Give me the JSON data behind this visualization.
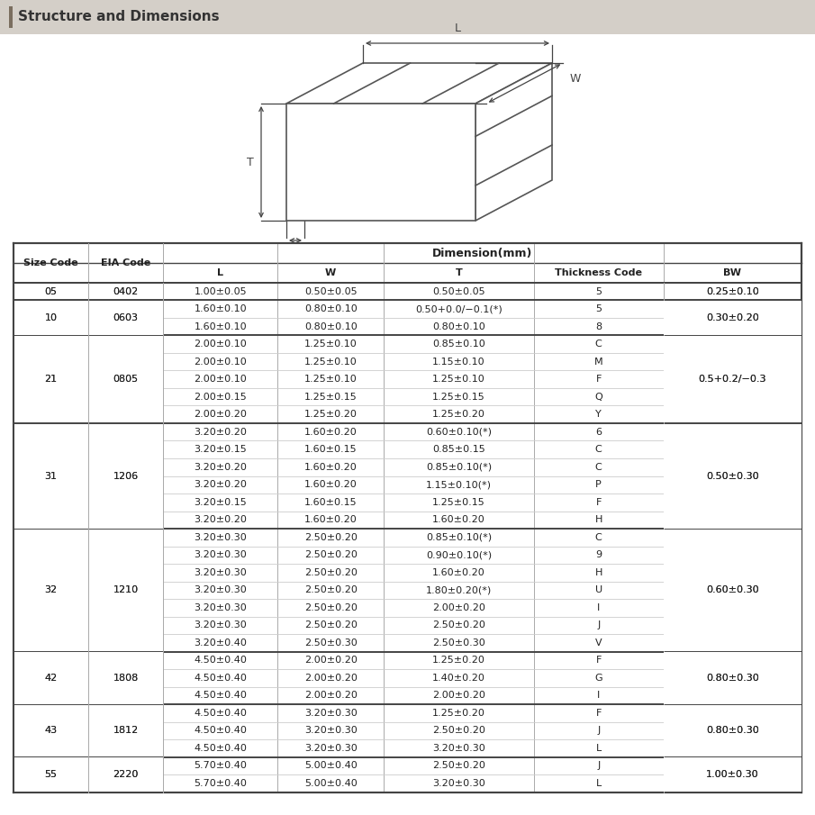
{
  "title": "Structure and Dimensions",
  "title_bar_color": "#d4cfc8",
  "title_accent_color": "#7a6e5f",
  "bg_color": "#ffffff",
  "dim_header": "Dimension(mm)",
  "col_headers_row1": [
    "Size Code",
    "EIA Code",
    "L",
    "W",
    "T",
    "Thickness Code",
    "BW"
  ],
  "rows": [
    [
      "05",
      "0402",
      "1.00±0.05",
      "0.50±0.05",
      "0.50±0.05",
      "5",
      "0.25±0.10"
    ],
    [
      "10",
      "0603",
      "1.60±0.10",
      "0.80±0.10",
      "0.50+0.0/−0.1(*)",
      "5",
      "0.30±0.20"
    ],
    [
      "",
      "",
      "1.60±0.10",
      "0.80±0.10",
      "0.80±0.10",
      "8",
      ""
    ],
    [
      "21",
      "0805",
      "2.00±0.10",
      "1.25±0.10",
      "0.85±0.10",
      "C",
      "0.5+0.2/−0.3"
    ],
    [
      "",
      "",
      "2.00±0.10",
      "1.25±0.10",
      "1.15±0.10",
      "M",
      ""
    ],
    [
      "",
      "",
      "2.00±0.10",
      "1.25±0.10",
      "1.25±0.10",
      "F",
      ""
    ],
    [
      "",
      "",
      "2.00±0.15",
      "1.25±0.15",
      "1.25±0.15",
      "Q",
      ""
    ],
    [
      "",
      "",
      "2.00±0.20",
      "1.25±0.20",
      "1.25±0.20",
      "Y",
      ""
    ],
    [
      "31",
      "1206",
      "3.20±0.20",
      "1.60±0.20",
      "0.60±0.10(*)",
      "6",
      "0.50±0.30"
    ],
    [
      "",
      "",
      "3.20±0.15",
      "1.60±0.15",
      "0.85±0.15",
      "C",
      ""
    ],
    [
      "",
      "",
      "3.20±0.20",
      "1.60±0.20",
      "0.85±0.10(*)",
      "C",
      ""
    ],
    [
      "",
      "",
      "3.20±0.20",
      "1.60±0.20",
      "1.15±0.10(*)",
      "P",
      ""
    ],
    [
      "",
      "",
      "3.20±0.15",
      "1.60±0.15",
      "1.25±0.15",
      "F",
      ""
    ],
    [
      "",
      "",
      "3.20±0.20",
      "1.60±0.20",
      "1.60±0.20",
      "H",
      ""
    ],
    [
      "32",
      "1210",
      "3.20±0.30",
      "2.50±0.20",
      "0.85±0.10(*)",
      "C",
      "0.60±0.30"
    ],
    [
      "",
      "",
      "3.20±0.30",
      "2.50±0.20",
      "0.90±0.10(*)",
      "9",
      ""
    ],
    [
      "",
      "",
      "3.20±0.30",
      "2.50±0.20",
      "1.60±0.20",
      "H",
      ""
    ],
    [
      "",
      "",
      "3.20±0.30",
      "2.50±0.20",
      "1.80±0.20(*)",
      "U",
      ""
    ],
    [
      "",
      "",
      "3.20±0.30",
      "2.50±0.20",
      "2.00±0.20",
      "I",
      ""
    ],
    [
      "",
      "",
      "3.20±0.30",
      "2.50±0.20",
      "2.50±0.20",
      "J",
      ""
    ],
    [
      "",
      "",
      "3.20±0.40",
      "2.50±0.30",
      "2.50±0.30",
      "V",
      ""
    ],
    [
      "42",
      "1808",
      "4.50±0.40",
      "2.00±0.20",
      "1.25±0.20",
      "F",
      "0.80±0.30"
    ],
    [
      "",
      "",
      "4.50±0.40",
      "2.00±0.20",
      "1.40±0.20",
      "G",
      ""
    ],
    [
      "",
      "",
      "4.50±0.40",
      "2.00±0.20",
      "2.00±0.20",
      "I",
      ""
    ],
    [
      "43",
      "1812",
      "4.50±0.40",
      "3.20±0.30",
      "1.25±0.20",
      "F",
      "0.80±0.30"
    ],
    [
      "",
      "",
      "4.50±0.40",
      "3.20±0.30",
      "2.50±0.20",
      "J",
      ""
    ],
    [
      "",
      "",
      "4.50±0.40",
      "3.20±0.30",
      "3.20±0.30",
      "L",
      ""
    ],
    [
      "55",
      "2220",
      "5.70±0.40",
      "5.00±0.40",
      "2.50±0.20",
      "J",
      "1.00±0.30"
    ],
    [
      "",
      "",
      "5.70±0.40",
      "5.00±0.40",
      "3.20±0.30",
      "L",
      ""
    ]
  ],
  "group_info": [
    [
      "05",
      "0402",
      0,
      0
    ],
    [
      "10",
      "0603",
      1,
      2
    ],
    [
      "21",
      "0805",
      3,
      7
    ],
    [
      "31",
      "1206",
      8,
      13
    ],
    [
      "32",
      "1210",
      14,
      20
    ],
    [
      "42",
      "1808",
      21,
      23
    ],
    [
      "43",
      "1812",
      24,
      26
    ],
    [
      "55",
      "2220",
      27,
      28
    ]
  ],
  "bw_info": [
    [
      "0.25±0.10",
      0,
      0
    ],
    [
      "0.30±0.20",
      1,
      2
    ],
    [
      "0.5+0.2/−0.3",
      3,
      7
    ],
    [
      "0.50±0.30",
      8,
      13
    ],
    [
      "0.60±0.30",
      14,
      20
    ],
    [
      "0.80±0.30",
      21,
      23
    ],
    [
      "0.80±0.30",
      24,
      26
    ],
    [
      "1.00±0.30",
      27,
      28
    ]
  ]
}
